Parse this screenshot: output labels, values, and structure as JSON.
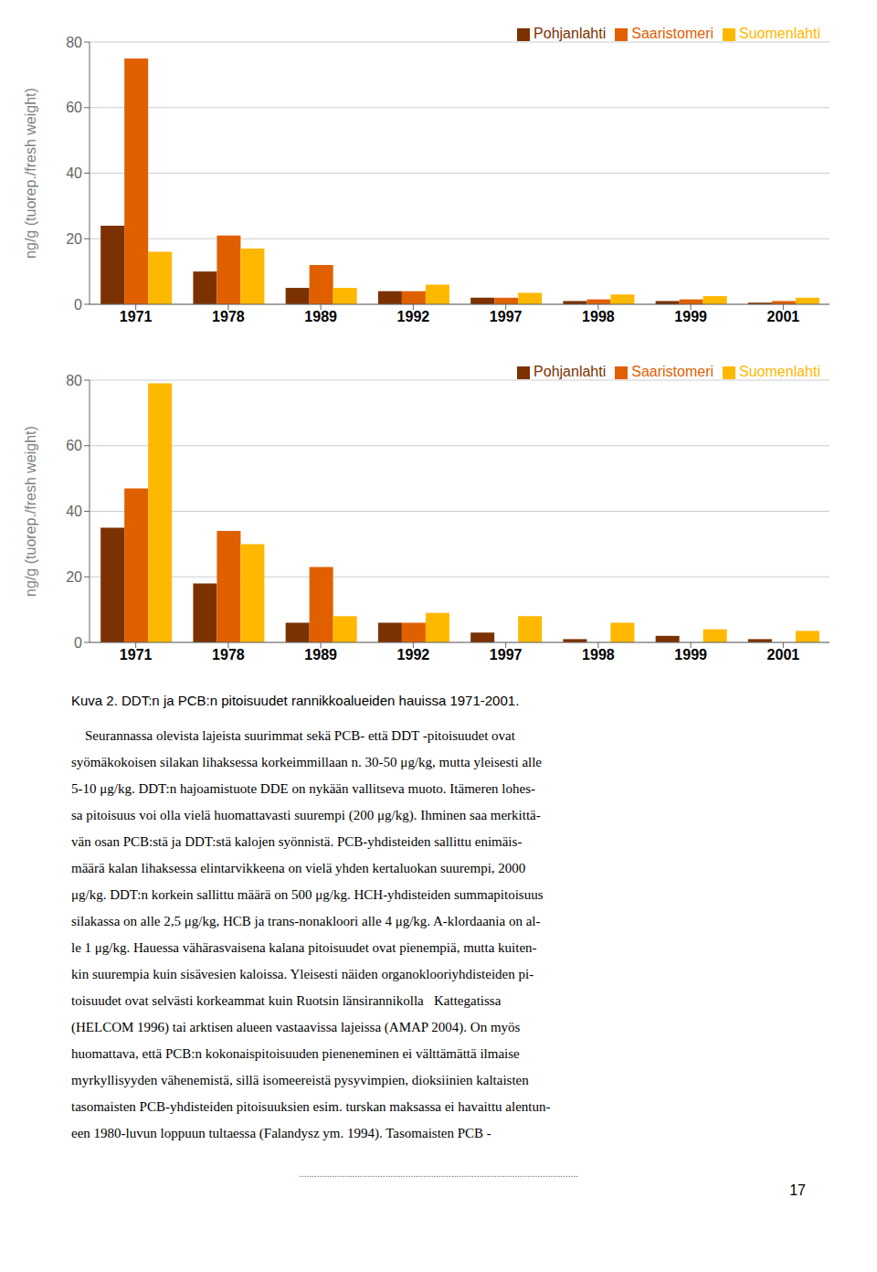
{
  "chart_data": [
    {
      "type": "bar",
      "categories": [
        "1971",
        "1978",
        "1989",
        "1992",
        "1997",
        "1998",
        "1999",
        "2001"
      ],
      "series": [
        {
          "name": "Pohjanlahti",
          "color": "#7B3200",
          "values": [
            24,
            10,
            5,
            4,
            2,
            1,
            1,
            0.5
          ]
        },
        {
          "name": "Saaristomeri",
          "color": "#E06000",
          "values": [
            75,
            21,
            12,
            4,
            2,
            1.5,
            1.5,
            1
          ]
        },
        {
          "name": "Suomenlahti",
          "color": "#FFB800",
          "values": [
            16,
            17,
            5,
            6,
            3.5,
            3,
            2.5,
            2
          ]
        }
      ],
      "y_label": "ng/g (tuorep./fresh weight)",
      "ylim": [
        0,
        80
      ],
      "yticks": [
        0,
        20,
        40,
        60,
        80
      ],
      "grid": true,
      "legend": "upper right"
    },
    {
      "type": "bar",
      "categories": [
        "1971",
        "1978",
        "1989",
        "1992",
        "1997",
        "1998",
        "1999",
        "2001"
      ],
      "series": [
        {
          "name": "Pohjanlahti",
          "color": "#7B3200",
          "values": [
            35,
            18,
            6,
            6,
            3,
            1,
            2,
            1
          ]
        },
        {
          "name": "Saaristomeri",
          "color": "#E06000",
          "values": [
            47,
            34,
            23,
            6,
            0,
            0,
            0,
            0
          ]
        },
        {
          "name": "Suomenlahti",
          "color": "#FFB800",
          "values": [
            79,
            30,
            8,
            9,
            8,
            6,
            4,
            3.5
          ]
        }
      ],
      "y_label": "ng/g (tuorep./fresh weight)",
      "ylim": [
        0,
        80
      ],
      "yticks": [
        0,
        20,
        40,
        60,
        80
      ],
      "grid": true,
      "legend": "upper right"
    }
  ],
  "annotations": [
    "Kuva 2. DDT:n ja PCB:n pitoisuudet rannikkoalueiden hauissa 1971-2001.",
    "    Seurannassa olevista lajeista suurimmat sekä PCB- että DDT -pitoisuudet ovat",
    "syömäkokoisen silakan lihaksessa korkeimmillaan n. 30-50 μg/kg, mutta yleisesti alle",
    "5-10 μg/kg. DDT:n hajoamistuote DDE on nykään vallitseva muoto. Itämeren lohes-",
    "sa pitoisuus voi olla vielä huomattavasti suurempi (200 μg/kg). Ihminen saa merkittä-",
    "vän osan PCB:stä ja DDT:stä kalojen syönnistä. PCB-yhdisteiden sallittu enimäis-",
    "määrä kalan lihaksessa elintarvikkeena on vielä yhden kertaluokan suurempi, 2000",
    "μg/kg. DDT:n korkein sallittu määrä on 500 μg/kg. HCH-yhdisteiden summapitoisuus",
    "silakassa on alle 2,5 μg/kg, HCB ja trans-nonakloori alle 4 μg/kg. A-klordaania on al-",
    "le 1 μg/kg. Hauessa vähärasvaisena kalana pitoisuudet ovat pienempiä, mutta kuiten-",
    "kin suurempia kuin sisävesien kaloissa. Yleisesti näiden organoklooriyhdisteiden pi-",
    "toisuudet ovat selvästi korkeammat kuin Ruotsin länsirannikolla   Kattegatissa",
    "(HELCOM 1996) tai arktisen alueen vastaavissa lajeissa (AMAP 2004). On myös",
    "huomattava, että PCB:n kokonaispitoisuuden pieneneminen ei välttämättä ilmaise",
    "myrkyllisyyden vähenemistä, sillä isomeereistä pysyvimpien, dioksiinien kaltaisten",
    "tasomaisten PCB-yhdisteiden pitoisuuksien esim. turskan maksassa ei havaittu alentun-",
    "een 1980-luvun loppuun tultaessa (Falandysz ym. 1994). Tasomaisten PCB -",
    "..............................................................................................................",
    "17"
  ]
}
